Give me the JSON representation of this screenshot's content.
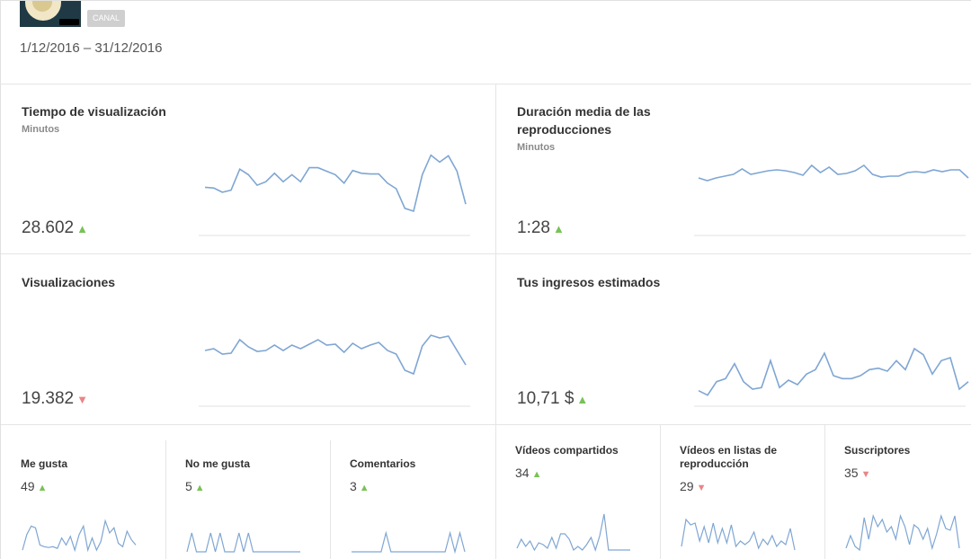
{
  "header": {
    "badge": "CANAL",
    "date_range": "1/12/2016 – 31/12/2016"
  },
  "colors": {
    "line": "#7fa6d3",
    "up": "#78c257",
    "down": "#e98585"
  },
  "cards": [
    {
      "title": "Tiempo de visualización",
      "unit": "Minutos",
      "value": "28.602",
      "trend": "up",
      "series": [
        52,
        51,
        45,
        48,
        78,
        70,
        55,
        60,
        72,
        60,
        70,
        60,
        80,
        80,
        75,
        70,
        58,
        76,
        72,
        71,
        71,
        58,
        50,
        22,
        18,
        70,
        98,
        88,
        97,
        75,
        28
      ]
    },
    {
      "title": "Duración media de las reproducciones",
      "unit": "Minutos",
      "value": "1:28",
      "trend": "up",
      "series": [
        60,
        57,
        60,
        62,
        64,
        70,
        64,
        66,
        68,
        69,
        68,
        66,
        63,
        74,
        66,
        72,
        64,
        65,
        68,
        74,
        64,
        61,
        62,
        62,
        66,
        67,
        66,
        69,
        67,
        69,
        69,
        60
      ]
    },
    {
      "title": "Visualizaciones",
      "unit": "",
      "value": "19.382",
      "trend": "down",
      "series": [
        58,
        60,
        54,
        55,
        70,
        62,
        57,
        58,
        64,
        58,
        64,
        60,
        65,
        70,
        64,
        65,
        56,
        66,
        60,
        64,
        67,
        58,
        54,
        36,
        32,
        63,
        75,
        72,
        74,
        58,
        42
      ]
    },
    {
      "title": "Tus ingresos estimados",
      "unit": "",
      "value": "10,71 $",
      "trend": "up",
      "series": [
        8,
        5,
        14,
        16,
        26,
        14,
        9,
        10,
        28,
        10,
        15,
        12,
        19,
        22,
        33,
        18,
        16,
        16,
        18,
        22,
        23,
        21,
        28,
        22,
        36,
        32,
        19,
        28,
        30,
        9,
        14
      ]
    }
  ],
  "minis": [
    {
      "title": "Me gusta",
      "value": "49",
      "trend": "up",
      "series": [
        2,
        20,
        30,
        28,
        8,
        6,
        5,
        6,
        4,
        16,
        8,
        18,
        2,
        20,
        30,
        2,
        16,
        2,
        12,
        36,
        22,
        28,
        10,
        6,
        24,
        14,
        8
      ]
    },
    {
      "title": "No me gusta",
      "value": "5",
      "trend": "up",
      "series": [
        0,
        22,
        0,
        0,
        0,
        22,
        0,
        22,
        0,
        0,
        0,
        22,
        0,
        22,
        0,
        0,
        0,
        0,
        0,
        0,
        0,
        0,
        0,
        0,
        0
      ]
    },
    {
      "title": "Comentarios",
      "value": "3",
      "trend": "up",
      "series": [
        0,
        0,
        0,
        0,
        0,
        0,
        0,
        22,
        0,
        0,
        0,
        0,
        0,
        0,
        0,
        0,
        0,
        0,
        0,
        0,
        22,
        0,
        22,
        0
      ]
    },
    {
      "title": "Vídeos compartidos",
      "value": "34",
      "trend": "up",
      "series": [
        4,
        14,
        6,
        12,
        2,
        10,
        8,
        4,
        16,
        4,
        20,
        20,
        14,
        2,
        6,
        2,
        8,
        16,
        2,
        18,
        42,
        2,
        2,
        2,
        2,
        2,
        2
      ]
    },
    {
      "title": "Vídeos en listas de reproducción",
      "value": "29",
      "trend": "down",
      "series": [
        6,
        36,
        30,
        32,
        12,
        28,
        10,
        32,
        10,
        26,
        10,
        30,
        6,
        12,
        8,
        12,
        22,
        4,
        14,
        8,
        18,
        6,
        12,
        8,
        26,
        2
      ]
    },
    {
      "title": "Suscriptores",
      "value": "35",
      "trend": "down",
      "series": [
        4,
        18,
        6,
        2,
        38,
        14,
        40,
        28,
        36,
        22,
        28,
        14,
        40,
        28,
        8,
        30,
        26,
        14,
        26,
        4,
        20,
        40,
        26,
        24,
        40,
        4
      ]
    }
  ]
}
